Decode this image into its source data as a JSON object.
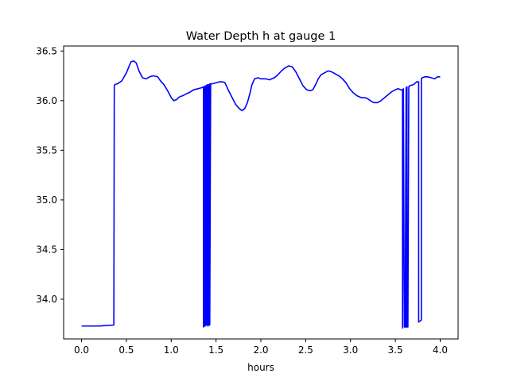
{
  "chart_data": {
    "type": "line",
    "title": "Water Depth h at gauge 1",
    "xlabel": "hours",
    "ylabel": "",
    "xlim": [
      -0.2,
      4.2
    ],
    "ylim": [
      33.6,
      36.55
    ],
    "xticks": [
      "0.0",
      "0.5",
      "1.0",
      "1.5",
      "2.0",
      "2.5",
      "3.0",
      "3.5",
      "4.0"
    ],
    "yticks": [
      "34.0",
      "34.5",
      "35.0",
      "35.5",
      "36.0",
      "36.5"
    ],
    "grid": false,
    "series": [
      {
        "color": "#0000ff",
        "x": [
          0.0,
          0.2,
          0.36,
          0.365,
          0.37,
          0.4,
          0.45,
          0.5,
          0.55,
          0.58,
          0.61,
          0.64,
          0.68,
          0.72,
          0.76,
          0.8,
          0.85,
          0.88,
          0.92,
          0.96,
          1.0,
          1.03,
          1.06,
          1.08,
          1.1,
          1.13,
          1.17,
          1.2,
          1.25,
          1.3,
          1.34,
          1.36,
          1.36,
          1.37,
          1.37,
          1.38,
          1.38,
          1.39,
          1.39,
          1.4,
          1.4,
          1.41,
          1.41,
          1.42,
          1.42,
          1.43,
          1.43,
          1.44,
          1.44,
          1.46,
          1.5,
          1.54,
          1.57,
          1.6,
          1.64,
          1.68,
          1.72,
          1.76,
          1.79,
          1.82,
          1.85,
          1.88,
          1.9,
          1.93,
          1.97,
          2.0,
          2.05,
          2.1,
          2.12,
          2.15,
          2.19,
          2.23,
          2.27,
          2.31,
          2.35,
          2.39,
          2.43,
          2.47,
          2.51,
          2.55,
          2.58,
          2.61,
          2.64,
          2.67,
          2.71,
          2.75,
          2.79,
          2.83,
          2.87,
          2.91,
          2.95,
          2.99,
          3.03,
          3.07,
          3.12,
          3.16,
          3.19,
          3.22,
          3.26,
          3.3,
          3.34,
          3.38,
          3.42,
          3.46,
          3.5,
          3.53,
          3.56,
          3.58,
          3.58,
          3.59,
          3.6,
          3.61,
          3.62,
          3.62,
          3.63,
          3.63,
          3.64,
          3.65,
          3.65,
          3.66,
          3.7,
          3.74,
          3.76,
          3.76,
          3.79,
          3.79,
          3.8,
          3.83,
          3.86,
          3.9,
          3.94,
          3.97,
          4.0
        ],
        "y": [
          33.73,
          33.73,
          33.74,
          36.15,
          36.16,
          36.17,
          36.2,
          36.28,
          36.39,
          36.4,
          36.38,
          36.3,
          36.23,
          36.22,
          36.24,
          36.25,
          36.24,
          36.2,
          36.16,
          36.1,
          36.03,
          36.0,
          36.01,
          36.03,
          36.04,
          36.05,
          36.07,
          36.08,
          36.11,
          36.12,
          36.13,
          36.14,
          33.72,
          36.14,
          33.73,
          36.15,
          33.73,
          36.15,
          33.74,
          36.16,
          33.74,
          36.16,
          33.73,
          36.16,
          33.74,
          36.17,
          33.74,
          36.17,
          36.17,
          36.17,
          36.18,
          36.19,
          36.19,
          36.18,
          36.1,
          36.03,
          35.96,
          35.92,
          35.9,
          35.92,
          35.98,
          36.08,
          36.16,
          36.22,
          36.23,
          36.22,
          36.22,
          36.21,
          36.22,
          36.23,
          36.26,
          36.3,
          36.33,
          36.35,
          36.34,
          36.29,
          36.22,
          36.15,
          36.11,
          36.1,
          36.11,
          36.16,
          36.22,
          36.26,
          36.28,
          36.3,
          36.29,
          36.27,
          36.25,
          36.22,
          36.18,
          36.12,
          36.08,
          36.05,
          36.03,
          36.03,
          36.02,
          36.0,
          35.98,
          35.98,
          36.0,
          36.03,
          36.06,
          36.09,
          36.11,
          36.12,
          36.11,
          36.11,
          33.71,
          36.12,
          33.72,
          33.72,
          36.13,
          33.72,
          36.14,
          33.72,
          33.72,
          36.14,
          36.14,
          36.15,
          36.16,
          36.19,
          36.19,
          33.77,
          33.79,
          36.22,
          36.23,
          36.24,
          36.24,
          36.23,
          36.22,
          36.24,
          36.24
        ]
      }
    ]
  }
}
